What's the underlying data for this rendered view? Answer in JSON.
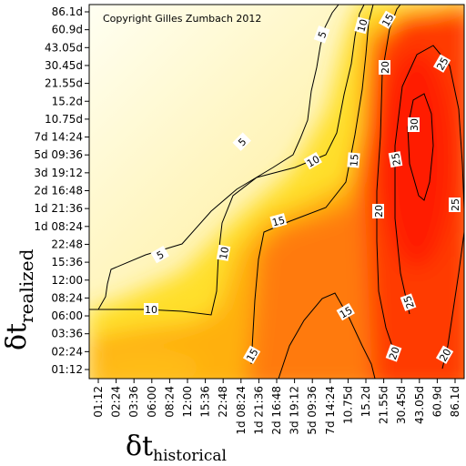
{
  "chart_data": {
    "type": "heatmap",
    "annotation": "Copyright Gilles Zumbach 2012",
    "xlabel": {
      "symbol": "δt",
      "subscript": "historical"
    },
    "ylabel": {
      "symbol": "δt",
      "subscript": "realized"
    },
    "x_ticks": [
      "01:12",
      "02:24",
      "03:36",
      "06:00",
      "08:24",
      "12:00",
      "15:36",
      "22:48",
      "1d 08:24",
      "1d 21:36",
      "2d 16:48",
      "3d 19:12",
      "5d 09:36",
      "7d 14:24",
      "10.75d",
      "15.2d",
      "21.55d",
      "30.45d",
      "43.05d",
      "60.9d",
      "86.1d"
    ],
    "y_ticks": [
      "01:12",
      "02:24",
      "03:36",
      "06:00",
      "08:24",
      "12:00",
      "15:36",
      "22:48",
      "1d 08:24",
      "1d 21:36",
      "2d 16:48",
      "3d 19:12",
      "5d 09:36",
      "7d 14:24",
      "10.75d",
      "15.2d",
      "21.55d",
      "30.45d",
      "43.05d",
      "60.9d",
      "86.1d"
    ],
    "contour_levels": [
      5,
      10,
      15,
      20,
      25,
      30
    ],
    "color_scale": {
      "low": "#fffff2",
      "mid": "#ffd21e",
      "high": "#ff1c00"
    }
  }
}
